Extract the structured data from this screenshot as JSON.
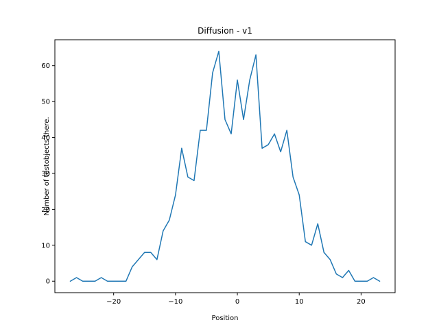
{
  "chart_data": {
    "type": "line",
    "title": "Diffusion - v1",
    "xlabel": "Position",
    "ylabel": "Number of testobjects there.",
    "xlim": [
      -29.5,
      25.5
    ],
    "ylim": [
      -3.2,
      67.2
    ],
    "x_ticks": [
      -20,
      -10,
      0,
      10,
      20
    ],
    "y_ticks": [
      0,
      10,
      20,
      30,
      40,
      50,
      60
    ],
    "x_tick_labels": [
      "−20",
      "−10",
      "0",
      "10",
      "20"
    ],
    "y_tick_labels": [
      "0",
      "10",
      "20",
      "30",
      "40",
      "50",
      "60"
    ],
    "grid": false,
    "legend": "none",
    "series": [
      {
        "color": "#1f77b4",
        "x": [
          -27,
          -26,
          -25,
          -24,
          -23,
          -22,
          -21,
          -20,
          -19,
          -18,
          -17,
          -16,
          -15,
          -14,
          -13,
          -12,
          -11,
          -10,
          -9,
          -8,
          -7,
          -6,
          -5,
          -4,
          -3,
          -2,
          -1,
          0,
          1,
          2,
          3,
          4,
          5,
          6,
          7,
          8,
          9,
          10,
          11,
          12,
          13,
          14,
          15,
          16,
          17,
          18,
          19,
          20,
          21,
          22,
          23
        ],
        "y": [
          0,
          1,
          0,
          0,
          0,
          1,
          0,
          0,
          0,
          0,
          4,
          6,
          8,
          8,
          6,
          14,
          17,
          24,
          37,
          29,
          28,
          42,
          42,
          58,
          64,
          45,
          41,
          56,
          45,
          56,
          63,
          37,
          38,
          41,
          36,
          42,
          29,
          24,
          11,
          10,
          16,
          8,
          6,
          2,
          1,
          3,
          0,
          0,
          0,
          1,
          0
        ]
      }
    ]
  }
}
